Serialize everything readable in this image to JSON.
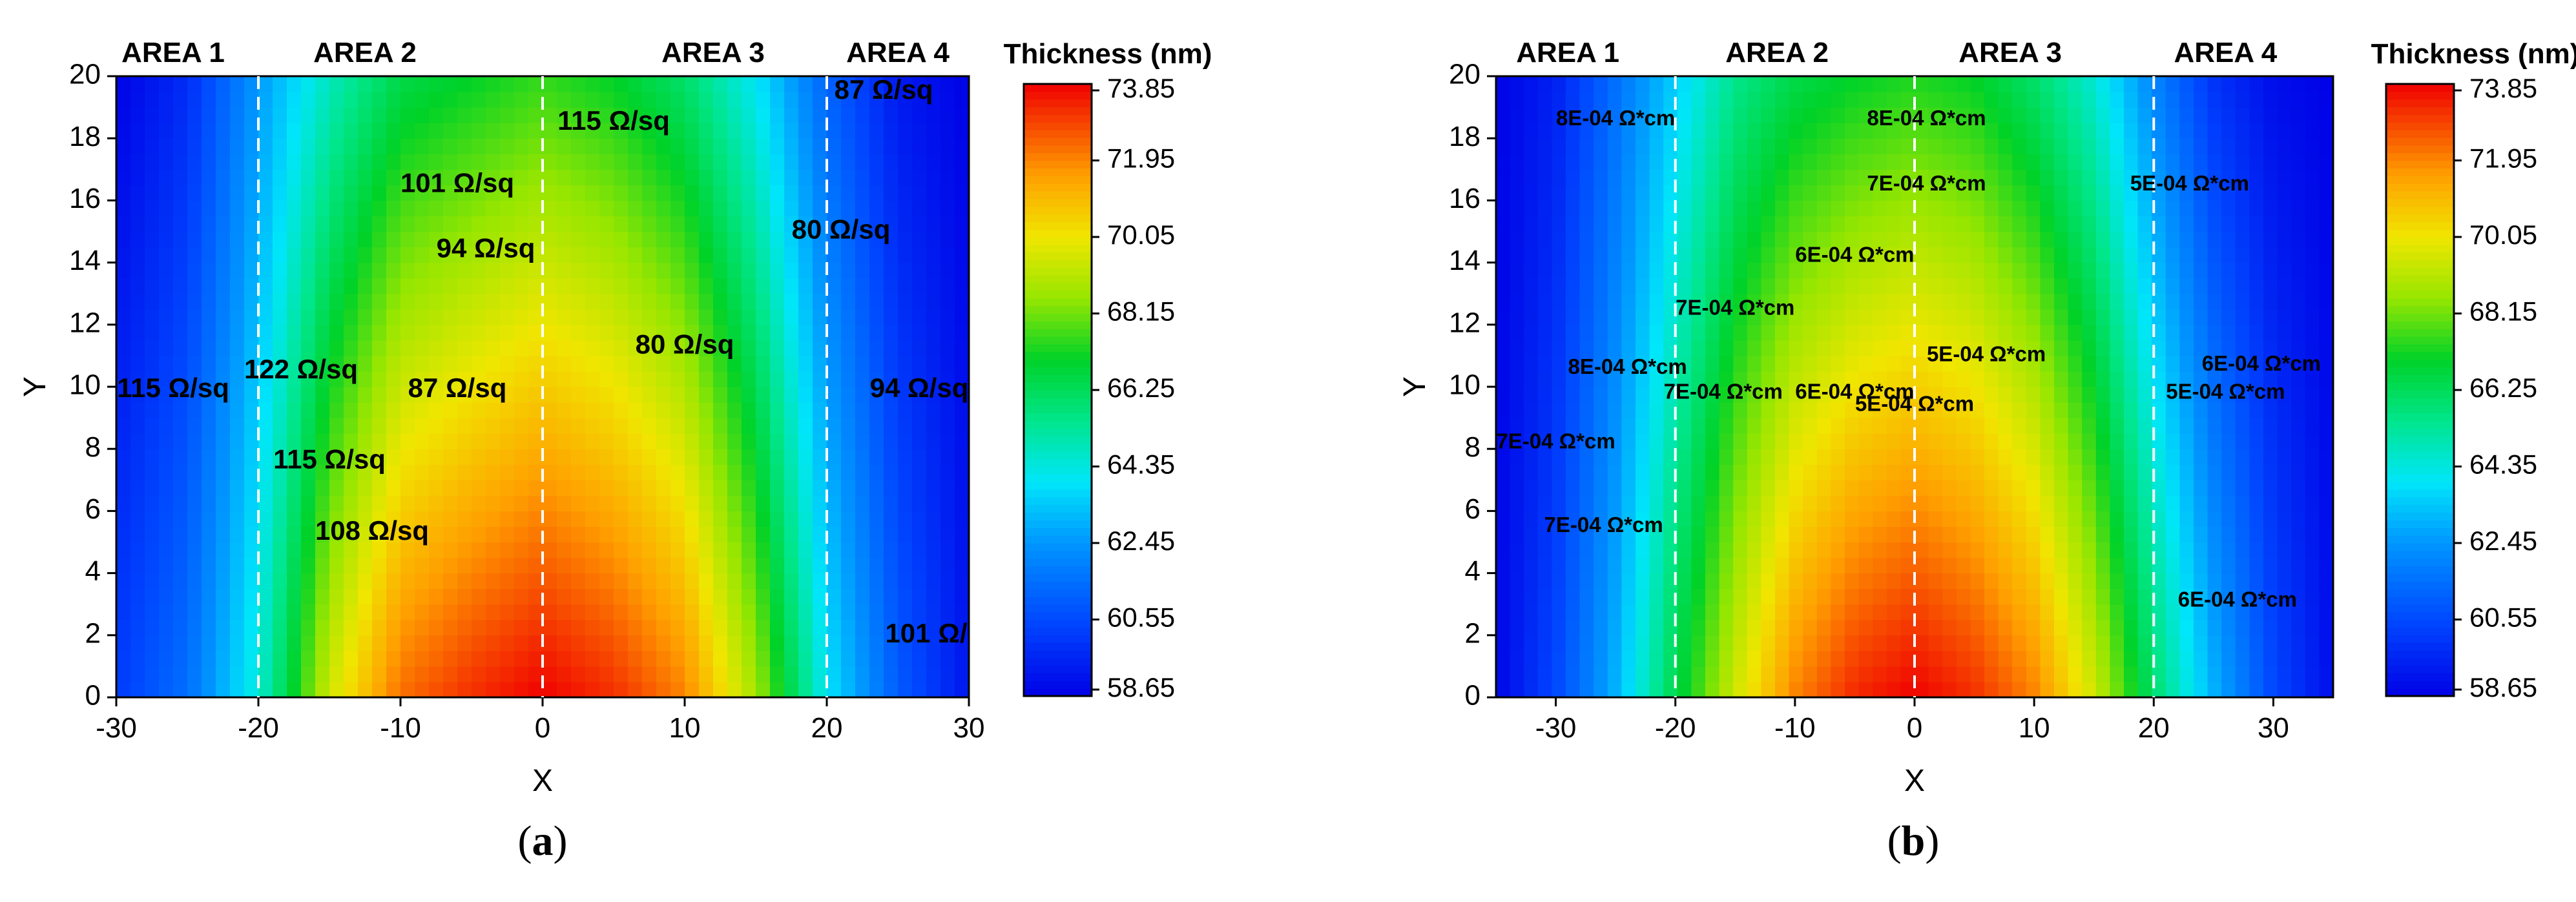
{
  "chart_data": [
    {
      "type": "heatmap",
      "panel": "a",
      "panel_label": "a",
      "title": "",
      "xlabel": "X",
      "ylabel": "Y",
      "xlim": [
        -30,
        30
      ],
      "ylim": [
        0,
        20
      ],
      "xticks": [
        -30,
        -20,
        -10,
        0,
        10,
        20,
        30
      ],
      "yticks": [
        0,
        2,
        4,
        6,
        8,
        10,
        12,
        14,
        16,
        18,
        20
      ],
      "colorbar": {
        "title": "Thickness (nm)",
        "ticks": [
          "73.85",
          "71.95",
          "70.05",
          "68.15",
          "66.25",
          "64.35",
          "62.45",
          "60.55",
          "58.65"
        ],
        "range": [
          58.65,
          73.85
        ]
      },
      "areas": [
        {
          "label": "AREA 1",
          "x": -26
        },
        {
          "label": "AREA 2",
          "x": -12.5
        },
        {
          "label": "AREA 3",
          "x": 12
        },
        {
          "label": "AREA 4",
          "x": 25
        }
      ],
      "area_dividers": [
        -20,
        0,
        20
      ],
      "thickness_profile": {
        "x": [
          -30,
          -25,
          -20,
          -15,
          -10,
          -5,
          0,
          5,
          10,
          15,
          20,
          25,
          30
        ],
        "thickness_at_bottom": [
          60.2,
          61.5,
          64.5,
          69.5,
          72.3,
          73.2,
          73.85,
          73.2,
          72.0,
          68.8,
          64.0,
          61.0,
          59.2
        ],
        "thickness_at_top": [
          58.7,
          59.8,
          62.5,
          64.8,
          66.5,
          67.0,
          67.5,
          67.0,
          66.0,
          64.0,
          61.2,
          59.3,
          58.7
        ]
      },
      "contour_label_unit": "Ω/sq",
      "contour_labels": [
        {
          "text": "122 Ω/sq",
          "x": -17,
          "y": 10.5
        },
        {
          "text": "115 Ω/sq",
          "x": -26,
          "y": 9.9
        },
        {
          "text": "115 Ω/sq",
          "x": -15,
          "y": 7.6
        },
        {
          "text": "108 Ω/sq",
          "x": -12,
          "y": 5.3
        },
        {
          "text": "87 Ω/sq",
          "x": -6,
          "y": 9.9
        },
        {
          "text": "80 Ω/sq",
          "x": 10,
          "y": 11.3
        },
        {
          "text": "94 Ω/sq",
          "x": -4,
          "y": 14.4
        },
        {
          "text": "101 Ω/sq",
          "x": -6,
          "y": 16.5
        },
        {
          "text": "115 Ω/sq",
          "x": 5,
          "y": 18.5
        },
        {
          "text": "87 Ω/sq",
          "x": 24,
          "y": 19.5
        },
        {
          "text": "80 Ω/sq",
          "x": 21,
          "y": 15.0
        },
        {
          "text": "94 Ω/sq",
          "x": 26.5,
          "y": 9.9
        },
        {
          "text": "101 Ω/",
          "x": 27,
          "y": 2.0
        }
      ]
    },
    {
      "type": "heatmap",
      "panel": "b",
      "panel_label": "b",
      "title": "",
      "xlabel": "X",
      "ylabel": "Y",
      "xlim": [
        -35,
        35
      ],
      "ylim": [
        0,
        20
      ],
      "xticks": [
        -30,
        -20,
        -10,
        0,
        10,
        20,
        30
      ],
      "yticks": [
        0,
        2,
        4,
        6,
        8,
        10,
        12,
        14,
        16,
        18,
        20
      ],
      "colorbar": {
        "title": "Thickness (nm)",
        "ticks": [
          "73.85",
          "71.95",
          "70.05",
          "68.15",
          "66.25",
          "64.35",
          "62.45",
          "60.55",
          "58.65"
        ],
        "range": [
          58.65,
          73.85
        ]
      },
      "areas": [
        {
          "label": "AREA 1",
          "x": -29
        },
        {
          "label": "AREA 2",
          "x": -11.5
        },
        {
          "label": "AREA 3",
          "x": 8
        },
        {
          "label": "AREA 4",
          "x": 26
        }
      ],
      "area_dividers": [
        -20,
        0,
        20
      ],
      "thickness_profile": {
        "x": [
          -35,
          -30,
          -25,
          -20,
          -15,
          -10,
          -5,
          0,
          5,
          10,
          15,
          20,
          25,
          30,
          35
        ],
        "thickness_at_bottom": [
          58.8,
          60.5,
          63.0,
          66.5,
          69.5,
          72.0,
          73.3,
          73.85,
          73.2,
          72.0,
          69.5,
          66.0,
          63.0,
          60.5,
          59.0
        ],
        "thickness_at_top": [
          58.7,
          59.5,
          61.5,
          63.5,
          65.5,
          66.5,
          67.0,
          67.3,
          67.0,
          66.0,
          64.5,
          62.0,
          60.0,
          59.0,
          58.7
        ]
      },
      "contour_label_unit": "Ω*cm",
      "contour_labels": [
        {
          "text": "8E-04 Ω*cm",
          "x": -25,
          "y": 18.6
        },
        {
          "text": "8E-04 Ω*cm",
          "x": 1,
          "y": 18.6
        },
        {
          "text": "7E-04 Ω*cm",
          "x": 1,
          "y": 16.5
        },
        {
          "text": "5E-04 Ω*cm",
          "x": 23,
          "y": 16.5
        },
        {
          "text": "6E-04 Ω*cm",
          "x": -5,
          "y": 14.2
        },
        {
          "text": "7E-04 Ω*cm",
          "x": -15,
          "y": 12.5
        },
        {
          "text": "5E-04 Ω*cm",
          "x": 6,
          "y": 11.0
        },
        {
          "text": "6E-04 Ω*cm",
          "x": 29,
          "y": 10.7
        },
        {
          "text": "8E-04 Ω*cm",
          "x": -24,
          "y": 10.6
        },
        {
          "text": "7E-04 Ω*cm",
          "x": -16,
          "y": 9.8
        },
        {
          "text": "6E-04 Ω*cm",
          "x": -5,
          "y": 9.8
        },
        {
          "text": "5E-04 Ω*cm",
          "x": 0,
          "y": 9.4
        },
        {
          "text": "5E-04 Ω*cm",
          "x": 26,
          "y": 9.8
        },
        {
          "text": "7E-04 Ω*cm",
          "x": -30,
          "y": 8.2
        },
        {
          "text": "7E-04 Ω*cm",
          "x": -26,
          "y": 5.5
        },
        {
          "text": "6E-04 Ω*cm",
          "x": 27,
          "y": 3.1
        }
      ]
    }
  ]
}
